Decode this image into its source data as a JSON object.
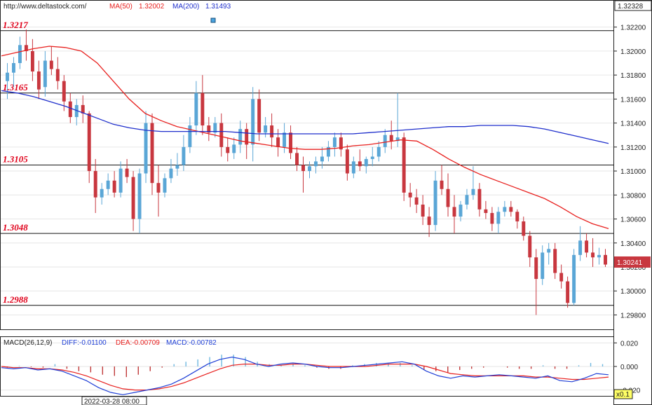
{
  "header": {
    "url": "http://www.deltastock.com/",
    "ma50_label": "MA(50)",
    "ma50_value": "1.32002",
    "ma200_label": "MA(200)",
    "ma200_value": "1.31493"
  },
  "colors": {
    "up_candle": "#5aa6d6",
    "down_candle": "#c8373f",
    "ma50": "#e8201e",
    "ma200": "#1f2fcc",
    "level_text": "#e0001a",
    "macd_line": "#1f3fd6",
    "dea_line": "#e8201e",
    "hist_pos": "#6fb8e0",
    "hist_neg": "#c03a3a"
  },
  "chart_data": [
    {
      "type": "candlestick",
      "title": "",
      "ylim": [
        1.2968,
        1.3242
      ],
      "y_ticks": [
        "1.32200",
        "1.32000",
        "1.31800",
        "1.31600",
        "1.31400",
        "1.31200",
        "1.31000",
        "1.30800",
        "1.30600",
        "1.30400",
        "1.30200",
        "1.30000",
        "1.29800"
      ],
      "y_tick_values": [
        1.322,
        1.32,
        1.318,
        1.316,
        1.314,
        1.312,
        1.31,
        1.308,
        1.306,
        1.304,
        1.302,
        1.3,
        1.298
      ],
      "top_price_box": "1.32328",
      "last_price_box": "1.30241",
      "last_price": 1.30241,
      "levels": [
        {
          "value": 1.3217,
          "label": "1.3217"
        },
        {
          "value": 1.3165,
          "label": "1.3165"
        },
        {
          "value": 1.3105,
          "label": "1.3105"
        },
        {
          "value": 1.3048,
          "label": "1.3048"
        },
        {
          "value": 1.2988,
          "label": "1.2988"
        }
      ],
      "series": [
        {
          "name": "MA(50)",
          "values": [
            1.3196,
            1.3199,
            1.3202,
            1.3204,
            1.3203,
            1.32,
            1.319,
            1.3175,
            1.316,
            1.3148,
            1.3142,
            1.3137,
            1.3134,
            1.3131,
            1.3128,
            1.3125,
            1.3123,
            1.3121,
            1.3119,
            1.3118,
            1.3118,
            1.3119,
            1.3121,
            1.3122,
            1.3124,
            1.3126,
            1.3125,
            1.3118,
            1.311,
            1.3103,
            1.3097,
            1.3092,
            1.3087,
            1.3082,
            1.3077,
            1.307,
            1.3062,
            1.3056,
            1.3052
          ]
        },
        {
          "name": "MA(200)",
          "values": [
            1.3167,
            1.3165,
            1.3162,
            1.3158,
            1.3154,
            1.3149,
            1.3144,
            1.3139,
            1.3136,
            1.3134,
            1.3133,
            1.3133,
            1.3133,
            1.3133,
            1.3133,
            1.3132,
            1.3131,
            1.3131,
            1.3131,
            1.3131,
            1.3131,
            1.3131,
            1.3131,
            1.3132,
            1.3133,
            1.3134,
            1.3135,
            1.3136,
            1.3137,
            1.3137,
            1.3138,
            1.3138,
            1.3138,
            1.3137,
            1.3135,
            1.3132,
            1.3129,
            1.3126,
            1.3123
          ]
        }
      ],
      "candles": [
        [
          1.3175,
          1.319,
          1.316,
          1.3182
        ],
        [
          1.3182,
          1.3195,
          1.317,
          1.319
        ],
        [
          1.319,
          1.3212,
          1.3185,
          1.3205
        ],
        [
          1.3205,
          1.3218,
          1.3192,
          1.32
        ],
        [
          1.32,
          1.321,
          1.3175,
          1.3183
        ],
        [
          1.3183,
          1.3192,
          1.316,
          1.3168
        ],
        [
          1.317,
          1.32,
          1.3162,
          1.3192
        ],
        [
          1.3192,
          1.3204,
          1.318,
          1.3185
        ],
        [
          1.3185,
          1.3195,
          1.3168,
          1.3175
        ],
        [
          1.3175,
          1.318,
          1.315,
          1.3158
        ],
        [
          1.3158,
          1.3165,
          1.314,
          1.3145
        ],
        [
          1.3145,
          1.316,
          1.3138,
          1.3155
        ],
        [
          1.3155,
          1.3163,
          1.314,
          1.3148
        ],
        [
          1.3148,
          1.315,
          1.309,
          1.31
        ],
        [
          1.31,
          1.311,
          1.3065,
          1.3078
        ],
        [
          1.3078,
          1.309,
          1.3072,
          1.3085
        ],
        [
          1.3085,
          1.3098,
          1.308,
          1.3092
        ],
        [
          1.3092,
          1.31,
          1.3078,
          1.3082
        ],
        [
          1.3082,
          1.3108,
          1.3078,
          1.3102
        ],
        [
          1.3102,
          1.311,
          1.309,
          1.3095
        ],
        [
          1.3095,
          1.31,
          1.305,
          1.306
        ],
        [
          1.306,
          1.3102,
          1.3048,
          1.3098
        ],
        [
          1.3098,
          1.315,
          1.309,
          1.314
        ],
        [
          1.314,
          1.3148,
          1.308,
          1.309
        ],
        [
          1.309,
          1.3105,
          1.3062,
          1.3082
        ],
        [
          1.3082,
          1.3098,
          1.3078,
          1.3094
        ],
        [
          1.3094,
          1.311,
          1.309,
          1.3102
        ],
        [
          1.3102,
          1.3115,
          1.3096,
          1.3105
        ],
        [
          1.3105,
          1.313,
          1.31,
          1.312
        ],
        [
          1.312,
          1.3145,
          1.3115,
          1.3138
        ],
        [
          1.3138,
          1.3175,
          1.313,
          1.3165
        ],
        [
          1.3165,
          1.318,
          1.313,
          1.3138
        ],
        [
          1.3138,
          1.3145,
          1.3125,
          1.3132
        ],
        [
          1.3132,
          1.3145,
          1.3128,
          1.314
        ],
        [
          1.314,
          1.3148,
          1.3112,
          1.312
        ],
        [
          1.312,
          1.3128,
          1.3108,
          1.3115
        ],
        [
          1.3115,
          1.3128,
          1.311,
          1.3122
        ],
        [
          1.3122,
          1.3142,
          1.3115,
          1.3135
        ],
        [
          1.3135,
          1.314,
          1.311,
          1.3122
        ],
        [
          1.3122,
          1.317,
          1.3108,
          1.316
        ],
        [
          1.316,
          1.3168,
          1.3125,
          1.3132
        ],
        [
          1.3132,
          1.3145,
          1.3128,
          1.3138
        ],
        [
          1.3138,
          1.3148,
          1.312,
          1.3128
        ],
        [
          1.3128,
          1.3135,
          1.3112,
          1.312
        ],
        [
          1.312,
          1.314,
          1.3115,
          1.3132
        ],
        [
          1.3132,
          1.3138,
          1.311,
          1.3115
        ],
        [
          1.3115,
          1.312,
          1.31,
          1.3105
        ],
        [
          1.3105,
          1.3112,
          1.3082,
          1.31
        ],
        [
          1.31,
          1.3108,
          1.3094,
          1.3104
        ],
        [
          1.3104,
          1.3112,
          1.3098,
          1.3108
        ],
        [
          1.3108,
          1.312,
          1.3102,
          1.3112
        ],
        [
          1.3112,
          1.3125,
          1.3108,
          1.312
        ],
        [
          1.312,
          1.3132,
          1.3112,
          1.3128
        ],
        [
          1.3128,
          1.3132,
          1.3112,
          1.3118
        ],
        [
          1.3118,
          1.3122,
          1.3092,
          1.3098
        ],
        [
          1.3098,
          1.3112,
          1.3094,
          1.3108
        ],
        [
          1.3108,
          1.3118,
          1.31,
          1.3104
        ],
        [
          1.3104,
          1.3112,
          1.3098,
          1.311
        ],
        [
          1.311,
          1.312,
          1.3104,
          1.3112
        ],
        [
          1.3112,
          1.3125,
          1.3108,
          1.312
        ],
        [
          1.312,
          1.3135,
          1.3115,
          1.313
        ],
        [
          1.313,
          1.3142,
          1.3118,
          1.3125
        ],
        [
          1.3125,
          1.3165,
          1.312,
          1.3128
        ],
        [
          1.3128,
          1.3132,
          1.3075,
          1.3082
        ],
        [
          1.3082,
          1.309,
          1.307,
          1.3078
        ],
        [
          1.3078,
          1.3085,
          1.3065,
          1.3072
        ],
        [
          1.3072,
          1.308,
          1.3055,
          1.3062
        ],
        [
          1.3062,
          1.307,
          1.3045,
          1.3055
        ],
        [
          1.3055,
          1.31,
          1.305,
          1.3092
        ],
        [
          1.3092,
          1.3105,
          1.308,
          1.3085
        ],
        [
          1.3085,
          1.3098,
          1.3062,
          1.307
        ],
        [
          1.307,
          1.308,
          1.3048,
          1.3062
        ],
        [
          1.3062,
          1.3075,
          1.3058,
          1.3072
        ],
        [
          1.3072,
          1.3085,
          1.3068,
          1.308
        ],
        [
          1.308,
          1.3104,
          1.3076,
          1.3085
        ],
        [
          1.3085,
          1.309,
          1.3062,
          1.3068
        ],
        [
          1.3068,
          1.3075,
          1.306,
          1.3065
        ],
        [
          1.3065,
          1.307,
          1.305,
          1.3056
        ],
        [
          1.3056,
          1.307,
          1.3048,
          1.3066
        ],
        [
          1.3066,
          1.3075,
          1.3062,
          1.307
        ],
        [
          1.307,
          1.3075,
          1.3062,
          1.3066
        ],
        [
          1.3066,
          1.3068,
          1.3052,
          1.3058
        ],
        [
          1.3058,
          1.3062,
          1.3042,
          1.3046
        ],
        [
          1.3046,
          1.305,
          1.302,
          1.3028
        ],
        [
          1.3028,
          1.3035,
          1.298,
          1.301
        ],
        [
          1.301,
          1.3038,
          1.3005,
          1.3032
        ],
        [
          1.3032,
          1.304,
          1.3022,
          1.3035
        ],
        [
          1.3035,
          1.304,
          1.301,
          1.3015
        ],
        [
          1.3015,
          1.3022,
          1.3002,
          1.3008
        ],
        [
          1.3008,
          1.3012,
          1.2986,
          1.299
        ],
        [
          1.299,
          1.3035,
          1.2988,
          1.303
        ],
        [
          1.303,
          1.3054,
          1.3025,
          1.3042
        ],
        [
          1.3042,
          1.3048,
          1.3028,
          1.3032
        ],
        [
          1.3032,
          1.3044,
          1.302,
          1.3028
        ],
        [
          1.3028,
          1.3036,
          1.3022,
          1.303
        ],
        [
          1.303,
          1.3035,
          1.302,
          1.3022
        ]
      ]
    },
    {
      "type": "macd",
      "label": "MACD(26,12,9)",
      "diff_text": "DIFF:-0.01100",
      "dea_text": "DEA:-0.00709",
      "macd_text": "MACD:-0.00782",
      "ylim": [
        -0.025,
        0.025
      ],
      "y_ticks": [
        "0.020",
        "0.000",
        "-0.020"
      ],
      "y_tick_values": [
        0.02,
        0.0,
        -0.02
      ],
      "scale_box": "x0.1",
      "diff": [
        -0.001,
        -0.002,
        -0.001,
        -0.003,
        -0.002,
        -0.004,
        -0.008,
        -0.012,
        -0.018,
        -0.022,
        -0.024,
        -0.022,
        -0.02,
        -0.018,
        -0.015,
        -0.01,
        -0.004,
        0.002,
        0.006,
        0.008,
        0.006,
        0.002,
        0.0,
        0.002,
        0.003,
        0.002,
        0.0,
        -0.001,
        -0.001,
        0.0,
        0.001,
        0.002,
        0.003,
        0.004,
        0.002,
        -0.004,
        -0.008,
        -0.01,
        -0.008,
        -0.009,
        -0.008,
        -0.007,
        -0.008,
        -0.009,
        -0.01,
        -0.008,
        -0.012,
        -0.013,
        -0.01,
        -0.006,
        -0.007
      ],
      "dea": [
        0.0,
        -0.001,
        -0.001,
        -0.002,
        -0.002,
        -0.003,
        -0.005,
        -0.008,
        -0.012,
        -0.016,
        -0.019,
        -0.02,
        -0.02,
        -0.019,
        -0.017,
        -0.014,
        -0.01,
        -0.006,
        -0.002,
        0.001,
        0.002,
        0.002,
        0.001,
        0.001,
        0.002,
        0.002,
        0.001,
        0.0,
        0.0,
        0.0,
        0.0,
        0.001,
        0.002,
        0.002,
        0.002,
        0.0,
        -0.003,
        -0.006,
        -0.007,
        -0.008,
        -0.008,
        -0.008,
        -0.008,
        -0.008,
        -0.009,
        -0.009,
        -0.01,
        -0.011,
        -0.011,
        -0.01,
        -0.009
      ],
      "histogram": [
        -0.001,
        0.0005,
        -0.0005,
        -0.001,
        0.002,
        -0.002,
        -0.004,
        -0.005,
        -0.007,
        -0.008,
        -0.009,
        -0.007,
        -0.004,
        -0.001,
        0.002,
        0.004,
        0.006,
        0.008,
        0.01,
        0.01,
        0.008,
        0.004,
        0.002,
        0.001,
        0.002,
        0.001,
        -0.001,
        -0.002,
        -0.002,
        0.001,
        0.002,
        0.003,
        0.003,
        0.003,
        0.001,
        -0.003,
        -0.004,
        -0.005,
        -0.003,
        -0.002,
        -0.001,
        0.0,
        -0.001,
        -0.002,
        -0.002,
        0.001,
        -0.002,
        -0.002,
        0.001,
        0.003,
        0.002
      ]
    }
  ],
  "footer": {
    "date_label": "2022-03-28 08:00"
  }
}
